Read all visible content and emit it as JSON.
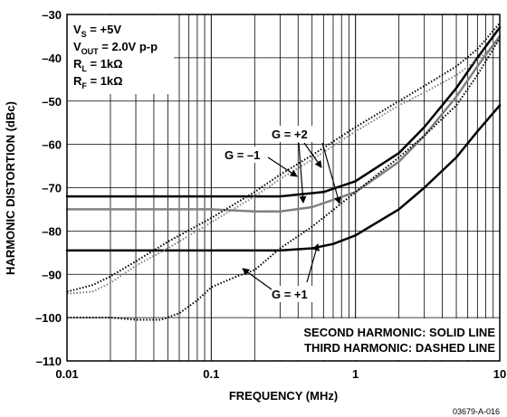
{
  "chart_data": {
    "type": "line",
    "title": "",
    "xlabel": "FREQUENCY (MHz)",
    "ylabel": "HARMONIC DISTORTION (dBc)",
    "xscale": "log",
    "xlim": [
      0.01,
      10
    ],
    "ylim": [
      -110,
      -30
    ],
    "x_ticks": [
      "0.01",
      "0.1",
      "1",
      "10"
    ],
    "y_ticks": [
      "–30",
      "–40",
      "–50",
      "–60",
      "–70",
      "–80",
      "–90",
      "–100",
      "–110"
    ],
    "grid": true,
    "conditions": {
      "vs": {
        "main": "V",
        "sub": "S",
        "rest": " = +5V"
      },
      "vout": {
        "main": "V",
        "sub": "OUT",
        "rest": " = 2.0V p-p"
      },
      "rl": {
        "main": "R",
        "sub": "L",
        "rest": " = 1kΩ"
      },
      "rf": {
        "main": "R",
        "sub": "F",
        "rest": " = 1kΩ"
      }
    },
    "annotations": {
      "g_minus1": "G = –1",
      "g_plus2": "G = +2",
      "g_plus1": "G = +1"
    },
    "legend_note": [
      "SECOND HARMONIC: SOLID LINE",
      "THIRD HARMONIC: DASHED LINE"
    ],
    "figure_code": "03679-A-016",
    "colors": {
      "black": "#000000",
      "gray": "#808080",
      "background": "#ffffff"
    },
    "series": [
      {
        "harmonic": "second",
        "gain": "+2",
        "style": "solid",
        "color": "#000000",
        "points": [
          [
            0.01,
            -72
          ],
          [
            0.1,
            -72
          ],
          [
            0.3,
            -72
          ],
          [
            0.6,
            -71
          ],
          [
            1,
            -68.5
          ],
          [
            2,
            -62
          ],
          [
            3,
            -56
          ],
          [
            5,
            -47
          ],
          [
            7,
            -40
          ],
          [
            10,
            -33
          ]
        ]
      },
      {
        "harmonic": "second",
        "gain": "–1",
        "style": "solid",
        "color": "#808080",
        "points": [
          [
            0.01,
            -75
          ],
          [
            0.1,
            -75
          ],
          [
            0.2,
            -75.5
          ],
          [
            0.3,
            -75.5
          ],
          [
            0.5,
            -74.5
          ],
          [
            1,
            -71
          ],
          [
            2,
            -64
          ],
          [
            3,
            -58
          ],
          [
            5,
            -49
          ],
          [
            7,
            -42
          ],
          [
            10,
            -35
          ]
        ]
      },
      {
        "harmonic": "second",
        "gain": "+1",
        "style": "solid",
        "color": "#000000",
        "points": [
          [
            0.01,
            -84.5
          ],
          [
            0.1,
            -84.5
          ],
          [
            0.3,
            -84.5
          ],
          [
            0.5,
            -84
          ],
          [
            0.7,
            -83
          ],
          [
            1,
            -81
          ],
          [
            2,
            -75
          ],
          [
            3,
            -70
          ],
          [
            5,
            -63
          ],
          [
            7,
            -57
          ],
          [
            10,
            -51
          ]
        ]
      },
      {
        "harmonic": "third",
        "gain": "–1",
        "style": "dashed",
        "color": "#808080",
        "points": [
          [
            0.01,
            -94.5
          ],
          [
            0.015,
            -94
          ],
          [
            0.02,
            -92
          ],
          [
            0.03,
            -88
          ],
          [
            0.05,
            -84
          ],
          [
            0.1,
            -78
          ],
          [
            0.2,
            -72
          ],
          [
            0.3,
            -68
          ],
          [
            0.5,
            -63.5
          ],
          [
            1,
            -57
          ],
          [
            2,
            -51
          ],
          [
            3,
            -48
          ],
          [
            5,
            -44
          ],
          [
            7,
            -40.5
          ],
          [
            10,
            -36
          ]
        ]
      },
      {
        "harmonic": "third",
        "gain": "+2",
        "style": "dashed",
        "color": "#000000",
        "points": [
          [
            0.01,
            -94
          ],
          [
            0.015,
            -92.5
          ],
          [
            0.02,
            -90.5
          ],
          [
            0.03,
            -87
          ],
          [
            0.05,
            -82.5
          ],
          [
            0.1,
            -77
          ],
          [
            0.2,
            -71
          ],
          [
            0.3,
            -67
          ],
          [
            0.5,
            -62.5
          ],
          [
            1,
            -56
          ],
          [
            2,
            -50
          ],
          [
            3,
            -46.5
          ],
          [
            5,
            -42
          ],
          [
            7,
            -38
          ],
          [
            10,
            -32
          ]
        ]
      },
      {
        "harmonic": "third",
        "gain": "+1",
        "style": "dashed",
        "color": "#000000",
        "points": [
          [
            0.01,
            -100
          ],
          [
            0.02,
            -100
          ],
          [
            0.03,
            -100.5
          ],
          [
            0.045,
            -100.5
          ],
          [
            0.06,
            -99
          ],
          [
            0.08,
            -96
          ],
          [
            0.1,
            -93
          ],
          [
            0.15,
            -90.5
          ],
          [
            0.2,
            -89
          ],
          [
            0.3,
            -84
          ],
          [
            0.5,
            -79
          ],
          [
            1,
            -71
          ],
          [
            2,
            -63
          ],
          [
            3,
            -58
          ],
          [
            5,
            -51
          ],
          [
            7,
            -44
          ],
          [
            10,
            -35.5
          ]
        ]
      }
    ]
  }
}
